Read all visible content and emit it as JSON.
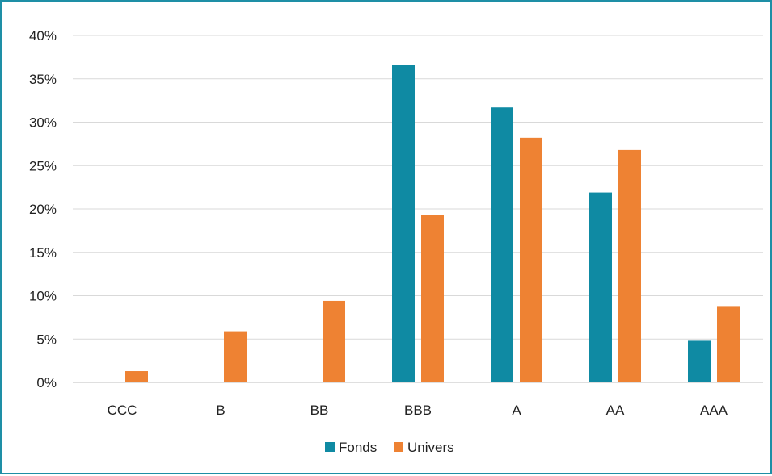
{
  "chart_data": {
    "type": "bar",
    "categories": [
      "CCC",
      "B",
      "BB",
      "BBB",
      "A",
      "AA",
      "AAA"
    ],
    "series": [
      {
        "name": "Fonds",
        "color": "#0f8aa3",
        "values": [
          0,
          0,
          0,
          36.6,
          31.7,
          21.9,
          4.8
        ]
      },
      {
        "name": "Univers",
        "color": "#ee8233",
        "values": [
          1.3,
          5.9,
          9.4,
          19.3,
          28.2,
          26.8,
          8.8
        ]
      }
    ],
    "ylim": [
      0,
      40
    ],
    "yticks": [
      "0%",
      "5%",
      "10%",
      "15%",
      "20%",
      "25%",
      "30%",
      "35%",
      "40%"
    ],
    "grid": true,
    "legend": "bottom-center"
  }
}
